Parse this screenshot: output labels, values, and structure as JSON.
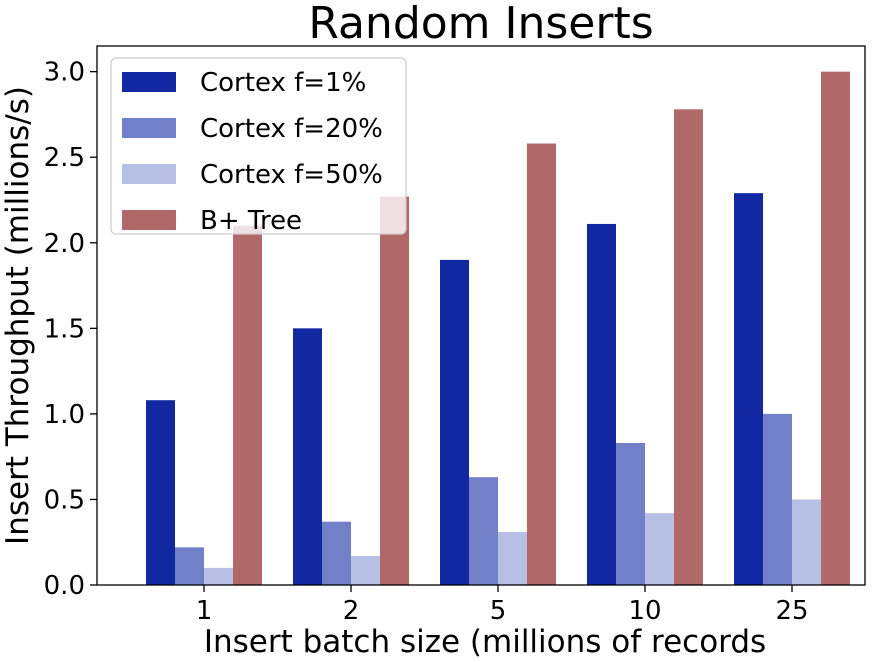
{
  "chart_data": {
    "type": "bar",
    "title": "Random Inserts",
    "xlabel": "Insert batch size (millions of records",
    "ylabel": "Insert Throughput (millions/s)",
    "categories": [
      "1",
      "2",
      "5",
      "10",
      "25"
    ],
    "ylim": [
      0,
      3.15
    ],
    "yticks": [
      "0.0",
      "0.5",
      "1.0",
      "1.5",
      "2.0",
      "2.5",
      "3.0"
    ],
    "grid": false,
    "legend_position": "top-left",
    "series": [
      {
        "name": "Cortex f=1%",
        "color": "#1228a0",
        "values": [
          1.08,
          1.5,
          1.9,
          2.11,
          2.29
        ]
      },
      {
        "name": "Cortex f=20%",
        "color": "#7180c8",
        "values": [
          0.22,
          0.37,
          0.63,
          0.83,
          1.0
        ]
      },
      {
        "name": "Cortex f=50%",
        "color": "#b7bfe5",
        "values": [
          0.1,
          0.17,
          0.31,
          0.42,
          0.5
        ]
      },
      {
        "name": "B+ Tree",
        "color": "#b06868",
        "values": [
          2.1,
          2.27,
          2.58,
          2.78,
          3.0
        ]
      }
    ]
  }
}
